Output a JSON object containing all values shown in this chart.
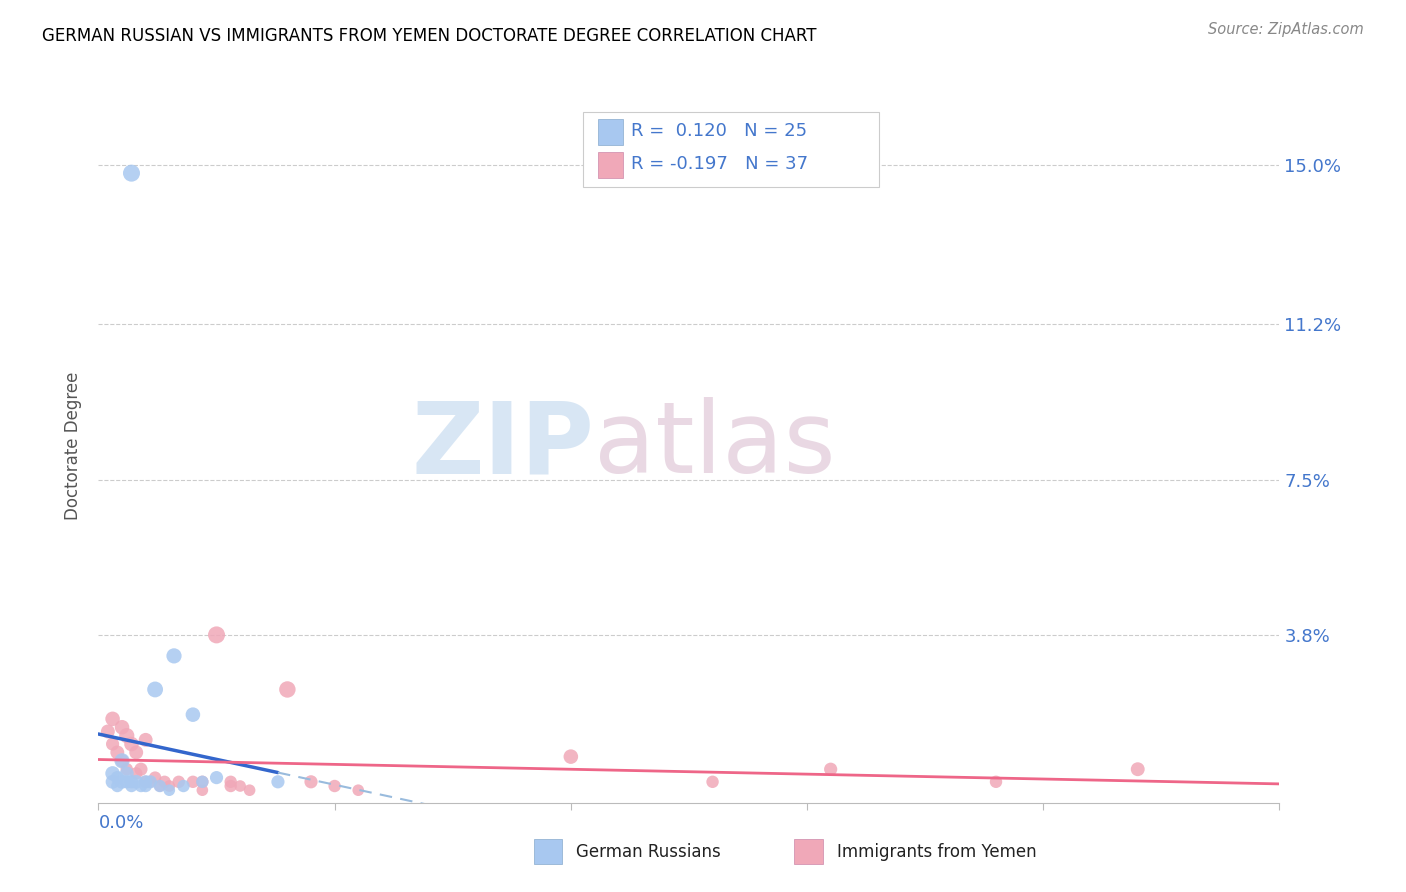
{
  "title": "GERMAN RUSSIAN VS IMMIGRANTS FROM YEMEN DOCTORATE DEGREE CORRELATION CHART",
  "source": "Source: ZipAtlas.com",
  "ylabel": "Doctorate Degree",
  "ytick_labels": [
    "15.0%",
    "11.2%",
    "7.5%",
    "3.8%"
  ],
  "ytick_values": [
    0.15,
    0.112,
    0.075,
    0.038
  ],
  "xlim": [
    0.0,
    0.25
  ],
  "ylim": [
    -0.002,
    0.168
  ],
  "legend1_R": "0.120",
  "legend1_N": "25",
  "legend2_R": "-0.197",
  "legend2_N": "37",
  "blue_color": "#A8C8F0",
  "pink_color": "#F0A8B8",
  "blue_line_color": "#3366CC",
  "blue_dash_color": "#99BBDD",
  "pink_line_color": "#EE6688",
  "watermark_zip_color": "#C8DCF0",
  "watermark_atlas_color": "#E0C8D8",
  "blue_scatter_x": [
    0.007,
    0.003,
    0.003,
    0.004,
    0.004,
    0.005,
    0.005,
    0.006,
    0.006,
    0.007,
    0.007,
    0.008,
    0.009,
    0.01,
    0.01,
    0.011,
    0.012,
    0.013,
    0.015,
    0.016,
    0.018,
    0.02,
    0.022,
    0.025,
    0.038
  ],
  "blue_scatter_y": [
    0.148,
    0.003,
    0.005,
    0.002,
    0.004,
    0.003,
    0.008,
    0.003,
    0.005,
    0.002,
    0.003,
    0.003,
    0.002,
    0.003,
    0.002,
    0.003,
    0.025,
    0.002,
    0.001,
    0.033,
    0.002,
    0.019,
    0.003,
    0.004,
    0.003
  ],
  "blue_scatter_sizes": [
    150,
    100,
    110,
    80,
    90,
    100,
    120,
    90,
    100,
    80,
    90,
    100,
    80,
    90,
    80,
    90,
    130,
    80,
    70,
    120,
    80,
    110,
    80,
    90,
    90
  ],
  "pink_scatter_x": [
    0.002,
    0.003,
    0.003,
    0.004,
    0.005,
    0.005,
    0.006,
    0.006,
    0.007,
    0.008,
    0.008,
    0.009,
    0.01,
    0.01,
    0.011,
    0.012,
    0.013,
    0.014,
    0.015,
    0.017,
    0.02,
    0.022,
    0.025,
    0.028,
    0.03,
    0.032,
    0.04,
    0.045,
    0.05,
    0.055,
    0.1,
    0.13,
    0.155,
    0.19,
    0.022,
    0.028,
    0.22
  ],
  "pink_scatter_y": [
    0.015,
    0.018,
    0.012,
    0.01,
    0.016,
    0.008,
    0.014,
    0.006,
    0.012,
    0.01,
    0.005,
    0.006,
    0.013,
    0.003,
    0.003,
    0.004,
    0.002,
    0.003,
    0.002,
    0.003,
    0.003,
    0.003,
    0.038,
    0.003,
    0.002,
    0.001,
    0.025,
    0.003,
    0.002,
    0.001,
    0.009,
    0.003,
    0.006,
    0.003,
    0.001,
    0.002,
    0.006
  ],
  "pink_scatter_sizes": [
    100,
    110,
    90,
    100,
    110,
    90,
    120,
    80,
    110,
    100,
    80,
    90,
    100,
    80,
    70,
    80,
    70,
    80,
    70,
    80,
    80,
    80,
    150,
    80,
    70,
    70,
    140,
    90,
    80,
    70,
    110,
    80,
    90,
    80,
    70,
    80,
    100
  ]
}
